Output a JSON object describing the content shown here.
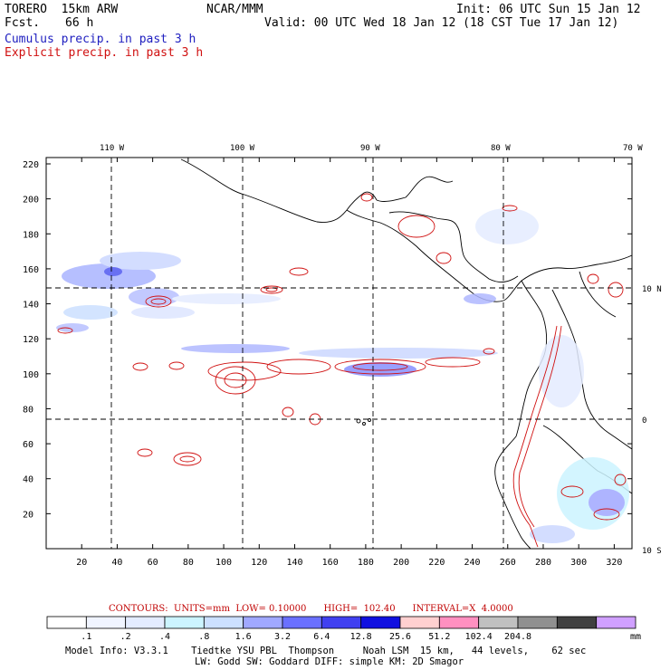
{
  "header": {
    "model": "TORERO  15km ARW",
    "fcst_label": "Fcst.",
    "fcst_value": "66 h",
    "org": "NCAR/MMM",
    "init": "Init: 06 UTC Sun 15 Jan 12",
    "valid": "Valid: 00 UTC Wed 18 Jan 12 (18 CST Tue 17 Jan 12)",
    "legend_cumulus": "Cumulus precip. in past 3 h",
    "legend_explicit": "Explicit precip. in past 3 h"
  },
  "map": {
    "lon_labels": [
      "110 W",
      "100 W",
      "90 W",
      "80 W",
      "70 W"
    ],
    "lat_labels": [
      "10 N",
      "0",
      "10 S"
    ],
    "y_ticks": [
      "220",
      "200",
      "180",
      "160",
      "140",
      "120",
      "100",
      "80",
      "60",
      "40",
      "20"
    ],
    "x_ticks": [
      "20",
      "40",
      "60",
      "80",
      "100",
      "120",
      "140",
      "160",
      "180",
      "200",
      "220",
      "240",
      "260",
      "280",
      "300",
      "320"
    ]
  },
  "contour_info": {
    "label": "CONTOURS:  UNITS=mm  LOW= 0.10000      HIGH=  102.40      INTERVAL=X  4.0000"
  },
  "colorbar": {
    "colors": [
      "#ffffff",
      "#f0f4ff",
      "#e4ecff",
      "#ccf4ff",
      "#cce0ff",
      "#a0a8ff",
      "#6a70ff",
      "#4040f0",
      "#1010e0",
      "#ffd0d0",
      "#ff90c0",
      "#c0c0c0",
      "#909090",
      "#404040",
      "#d0a0ff"
    ],
    "labels": [
      ".1",
      ".2",
      ".4",
      ".8",
      "1.6",
      "3.2",
      "6.4",
      "12.8",
      "25.6",
      "51.2",
      "102.4",
      "204.8"
    ],
    "unit": "mm"
  },
  "footer": {
    "line1": "Model Info: V3.3.1    Tiedtke YSU PBL  Thompson     Noah LSM  15 km,   44 levels,    62 sec",
    "line2": "LW: Godd SW: Goddard DIFF: simple KM: 2D Smagor"
  }
}
